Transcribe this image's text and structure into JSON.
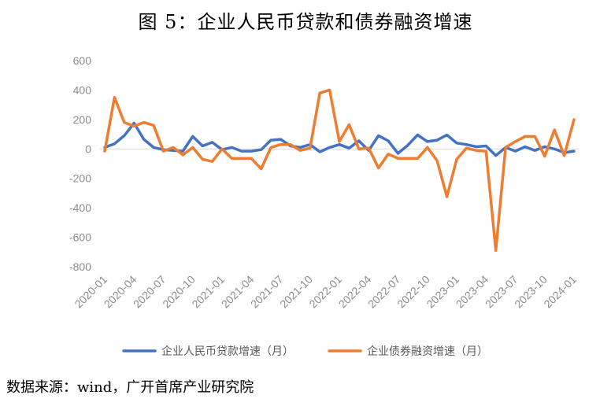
{
  "title": "图 5：企业人民币贷款和债券融资增速",
  "source": "数据来源：wind，广开首席产业研究院",
  "colors": {
    "series1": "#4472C4",
    "series2": "#ED7D31",
    "tick": "#8c8c8c",
    "axis": "#d9d9d9"
  },
  "chart_data": {
    "type": "line",
    "title": "",
    "xlabel": "",
    "ylabel": "",
    "ylim": [
      -800,
      600
    ],
    "yticks": [
      600,
      400,
      200,
      0,
      -200,
      -400,
      -600,
      -800
    ],
    "grid": false,
    "legend": "bottom",
    "x": [
      "2020-01",
      "2020-02",
      "2020-03",
      "2020-04",
      "2020-05",
      "2020-06",
      "2020-07",
      "2020-08",
      "2020-09",
      "2020-10",
      "2020-11",
      "2020-12",
      "2021-01",
      "2021-02",
      "2021-03",
      "2021-04",
      "2021-05",
      "2021-06",
      "2021-07",
      "2021-08",
      "2021-09",
      "2021-10",
      "2021-11",
      "2021-12",
      "2022-01",
      "2022-02",
      "2022-03",
      "2022-04",
      "2022-05",
      "2022-06",
      "2022-07",
      "2022-08",
      "2022-09",
      "2022-10",
      "2022-11",
      "2022-12",
      "2023-01",
      "2023-02",
      "2023-03",
      "2023-04",
      "2023-05",
      "2023-06",
      "2023-07",
      "2023-08",
      "2023-09",
      "2023-10",
      "2023-11",
      "2023-12",
      "2024-01"
    ],
    "xtick_labels": [
      "2020-01",
      "2020-04",
      "2020-07",
      "2020-10",
      "2021-01",
      "2021-04",
      "2021-07",
      "2021-10",
      "2022-01",
      "2022-04",
      "2022-07",
      "2022-10",
      "2023-01",
      "2023-04",
      "2023-07",
      "2023-10",
      "2024-01"
    ],
    "series": [
      {
        "name": "企业人民币贷款增速（月）",
        "values": [
          10,
          35,
          90,
          175,
          65,
          10,
          -5,
          -10,
          -15,
          85,
          20,
          45,
          -5,
          10,
          -15,
          -15,
          -5,
          60,
          65,
          20,
          10,
          30,
          -20,
          10,
          30,
          5,
          55,
          -10,
          90,
          55,
          -30,
          25,
          95,
          50,
          60,
          95,
          40,
          30,
          15,
          20,
          -45,
          10,
          -15,
          15,
          -10,
          15,
          0,
          -25,
          -15
        ]
      },
      {
        "name": "企业债券融资增速（月）",
        "values": [
          -15,
          350,
          180,
          155,
          180,
          160,
          -15,
          10,
          -40,
          10,
          -70,
          -85,
          0,
          -65,
          -65,
          -65,
          -135,
          10,
          30,
          30,
          -10,
          5,
          380,
          400,
          50,
          165,
          0,
          5,
          -130,
          -35,
          -65,
          -65,
          -65,
          10,
          -80,
          -325,
          -70,
          5,
          -10,
          -15,
          -690,
          10,
          50,
          85,
          85,
          -50,
          130,
          -45,
          200
        ]
      }
    ]
  }
}
